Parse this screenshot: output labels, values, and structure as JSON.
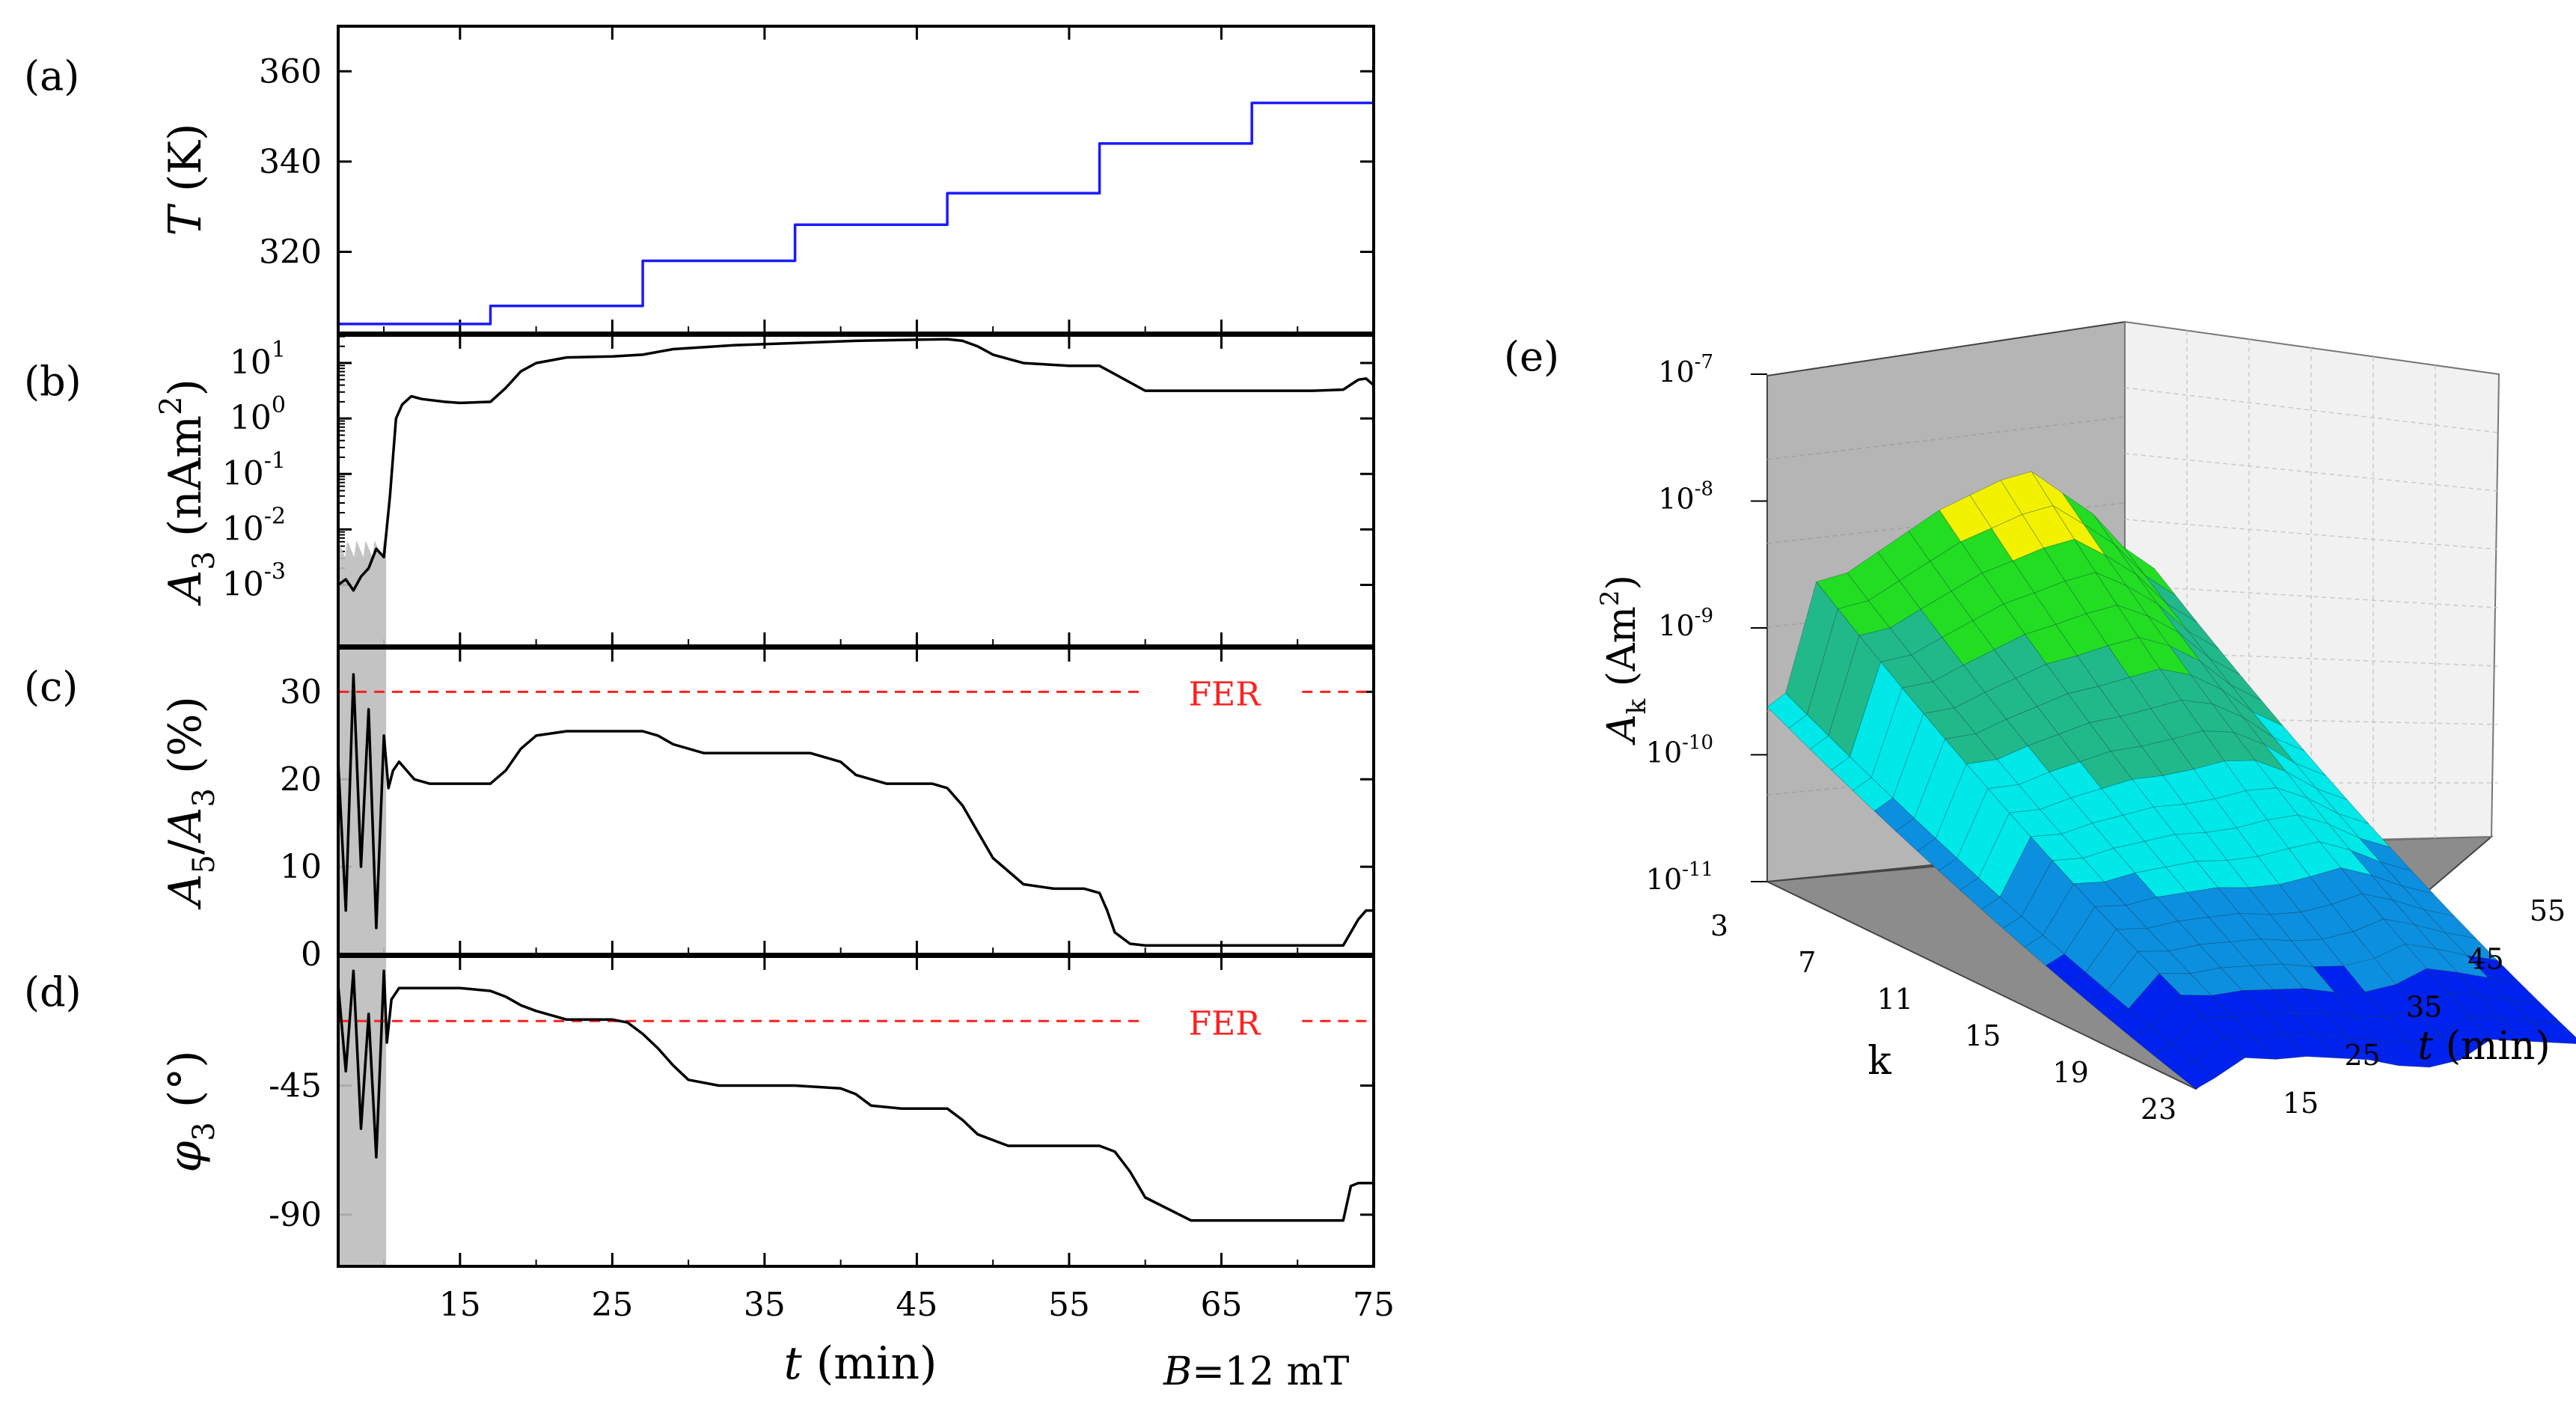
{
  "figure": {
    "panel_labels": [
      "(a)",
      "(b)",
      "(c)",
      "(d)",
      "(e)"
    ],
    "bottom_annotation": "B=12 mT"
  },
  "colors": {
    "temperature": "#1a1aff",
    "trace": "#000000",
    "noise": "#bdbdbd",
    "reference": "#ff2020",
    "surface": [
      "#0022ee",
      "#0d8fe0",
      "#00e8e8",
      "#22b98a",
      "#22dd22",
      "#f2f200",
      "#d06a00"
    ]
  },
  "chart_data": [
    {
      "id": "a",
      "type": "line",
      "step": true,
      "ylabel_parts": [
        "T",
        " (K)"
      ],
      "xlim": [
        7,
        75
      ],
      "ylim": [
        302,
        370
      ],
      "yticks": [
        320,
        340,
        360
      ],
      "yticklabels": [
        "320",
        "340",
        "360"
      ],
      "series": [
        {
          "x": [
            7,
            17,
            17,
            27,
            27,
            37,
            37,
            47,
            47,
            57,
            57,
            67,
            67,
            75
          ],
          "y": [
            304,
            304,
            308,
            308,
            318,
            318,
            326,
            326,
            333,
            333,
            344,
            344,
            353,
            353
          ]
        }
      ]
    },
    {
      "id": "b",
      "type": "line",
      "log_y": true,
      "ylabel_parts": [
        "A",
        "3",
        " (nAm",
        "2",
        ")"
      ],
      "xlim": [
        7,
        75
      ],
      "ylim_log10": [
        -4.1,
        1.5
      ],
      "ytick_exponents": [
        -3,
        -2,
        -1,
        0,
        1
      ],
      "ytick_mantissa": "10",
      "series": [
        {
          "x": [
            7,
            7.5,
            8,
            8.5,
            9,
            9.5,
            10,
            10.4,
            10.8,
            11.2,
            11.8,
            12.5,
            14,
            15,
            17,
            18,
            19,
            20,
            22,
            25,
            27,
            29,
            33,
            37,
            41,
            45,
            47,
            48,
            49,
            50,
            52,
            55,
            57,
            58,
            59,
            60,
            63,
            67,
            71,
            73,
            74,
            74.5,
            75
          ],
          "log10_y": [
            -3.0,
            -2.9,
            -3.1,
            -2.85,
            -2.7,
            -2.35,
            -2.5,
            -1.4,
            0.0,
            0.25,
            0.4,
            0.35,
            0.3,
            0.28,
            0.3,
            0.55,
            0.85,
            1.0,
            1.1,
            1.12,
            1.15,
            1.25,
            1.32,
            1.36,
            1.4,
            1.42,
            1.43,
            1.4,
            1.3,
            1.15,
            1.0,
            0.95,
            0.95,
            0.8,
            0.65,
            0.5,
            0.5,
            0.5,
            0.5,
            0.52,
            0.7,
            0.72,
            0.6
          ]
        }
      ]
    },
    {
      "id": "c",
      "type": "line",
      "ylabel_parts": [
        "A",
        "5",
        "/",
        "A",
        "3",
        " (%)"
      ],
      "xlim": [
        7,
        75
      ],
      "ylim": [
        0,
        35
      ],
      "yticks": [
        0,
        10,
        20,
        30
      ],
      "yticklabels": [
        "0",
        "10",
        "20",
        "30"
      ],
      "reference_line": {
        "y": 30,
        "label": "FER"
      },
      "series": [
        {
          "x": [
            7,
            7.5,
            8,
            8.5,
            9,
            9.5,
            10,
            10.3,
            10.6,
            11,
            12,
            13,
            14,
            17,
            18,
            19,
            20,
            22,
            25,
            27,
            28,
            29,
            31,
            35,
            38,
            40,
            41,
            43,
            46,
            47,
            48,
            49,
            50,
            52,
            54,
            56,
            57,
            57.5,
            58,
            59,
            60,
            65,
            70,
            73,
            74,
            74.5,
            75
          ],
          "y": [
            22,
            5,
            32,
            10,
            28,
            3,
            25,
            19,
            21,
            22,
            20,
            19.5,
            19.5,
            19.5,
            21,
            23.5,
            25,
            25.5,
            25.5,
            25.5,
            25,
            24,
            23,
            23,
            23,
            22,
            20.5,
            19.5,
            19.5,
            19,
            17,
            14,
            11,
            8,
            7.5,
            7.5,
            7,
            5,
            2.5,
            1.2,
            1.0,
            1.0,
            1.0,
            1.0,
            4,
            5,
            5
          ]
        }
      ]
    },
    {
      "id": "d",
      "type": "line",
      "ylabel_parts": [
        "φ",
        "3",
        " (°)"
      ],
      "xlim": [
        7,
        75
      ],
      "ylim": [
        -108,
        0
      ],
      "yticks": [
        -90,
        -45
      ],
      "yticklabels": [
        "-90",
        "-45"
      ],
      "reference_line": {
        "y": -22.5,
        "label": "FER"
      },
      "series": [
        {
          "x": [
            7,
            7.5,
            8,
            8.5,
            9,
            9.5,
            10,
            10.2,
            10.5,
            11,
            12,
            15,
            17,
            18,
            19,
            20,
            22,
            25,
            26,
            27,
            28,
            29,
            30,
            32,
            37,
            40,
            41,
            42,
            44,
            47,
            48,
            49,
            51,
            55,
            57,
            58,
            59,
            60,
            63,
            67,
            73,
            73.5,
            74,
            75
          ],
          "y": [
            -10,
            -40,
            -5,
            -60,
            -20,
            -70,
            -5,
            -30,
            -15,
            -11,
            -11,
            -11,
            -12,
            -14,
            -17,
            -19,
            -22,
            -22,
            -23,
            -27,
            -32,
            -38,
            -43,
            -45,
            -45,
            -46,
            -48,
            -52,
            -53,
            -53,
            -57,
            -62,
            -66,
            -66,
            -66,
            -68,
            -75,
            -84,
            -92,
            -92,
            -92,
            -80,
            -79,
            -79
          ]
        }
      ]
    },
    {
      "id": "e",
      "type": "surface3d",
      "xlabel": "t (min)",
      "ylabel": "k",
      "zlabel_parts": [
        "A",
        "k",
        " (Am",
        "2",
        ")"
      ],
      "t_ticks": [
        15,
        25,
        35,
        45,
        55
      ],
      "k_ticks": [
        3,
        7,
        11,
        15,
        19,
        23
      ],
      "z_ticks": [
        {
          "m": "10",
          "e": "-11"
        },
        {
          "m": "10",
          "e": "-10"
        },
        {
          "m": "10",
          "e": "-9"
        },
        {
          "m": "10",
          "e": "-8"
        },
        {
          "m": "10",
          "e": "-7"
        }
      ],
      "t": [
        12,
        15,
        20,
        25,
        30,
        35,
        40,
        45,
        50,
        55,
        60,
        65,
        70,
        75
      ],
      "k3_log10": [
        -9.55,
        -9.45,
        -8.55,
        -8.5,
        -8.35,
        -8.2,
        -8.05,
        -7.95,
        -7.85,
        -7.8,
        -8.0,
        -8.2,
        -8.5,
        -8.7
      ],
      "k23_log10": [
        -11.0,
        -10.9,
        -10.7,
        -10.75,
        -10.75,
        -10.8,
        -10.85,
        -10.95,
        -11.0,
        -10.95,
        -10.75,
        -10.8,
        -10.85,
        -10.9
      ]
    }
  ]
}
